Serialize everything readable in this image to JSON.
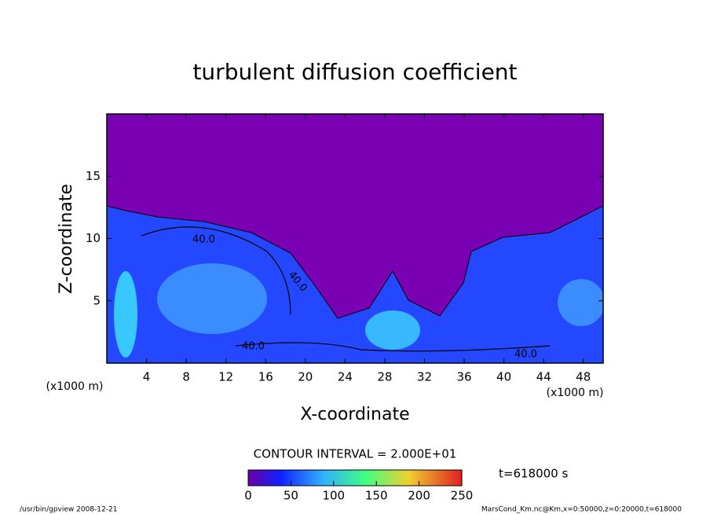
{
  "chart_data": {
    "type": "contour",
    "title": "turbulent diffusion coefficient",
    "xlabel": "X-coordinate",
    "ylabel": "Z-coordinate",
    "x_unit_left": "(x1000 m)",
    "x_unit_right": "(x1000 m)",
    "xlim": [
      0,
      50
    ],
    "xticks": [
      4,
      8,
      12,
      16,
      20,
      24,
      28,
      32,
      36,
      40,
      44,
      48
    ],
    "ylim": [
      0,
      20
    ],
    "yticks": [
      5,
      10,
      15
    ],
    "contour_labels": [
      "40.0",
      "40.0",
      "40.0",
      "40.0"
    ],
    "contour_interval": "CONTOUR INTERVAL = 2.000E+01",
    "colorbar": {
      "lim": [
        0,
        250
      ],
      "ticks": [
        0,
        50,
        100,
        150,
        200,
        250
      ]
    },
    "time_label": "t=618000 s",
    "footer_left": "/usr/bin/gpview   2008-12-21",
    "footer_right": "MarsCond_Km.nc@Km,x=0:50000,z=0:20000,t=618000"
  }
}
